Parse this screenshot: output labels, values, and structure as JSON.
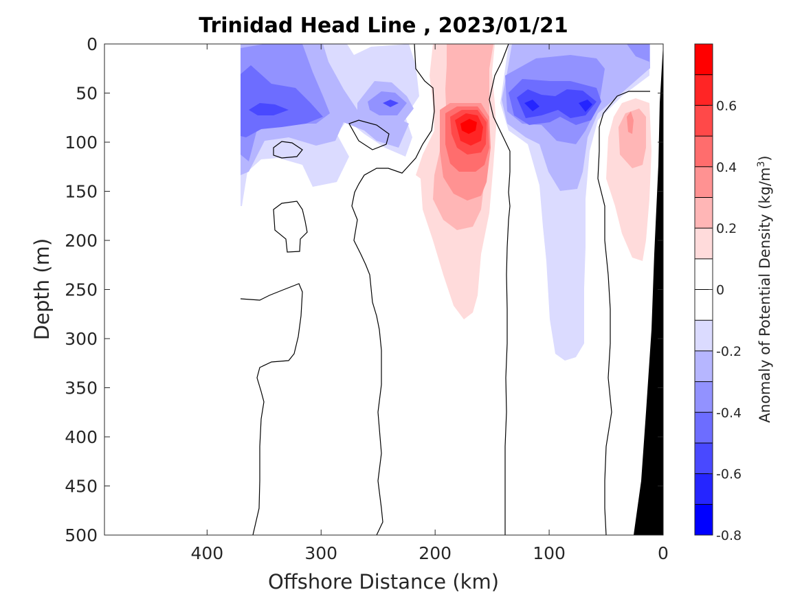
{
  "chart_data": {
    "type": "heatmap",
    "subtype": "filled contour section",
    "title": "Trinidad Head Line , 2023/01/21",
    "xlabel": "Offshore Distance (km)",
    "ylabel": "Depth (m)",
    "colorbar_label_main": "Anomaly of Potential Density (kg/m",
    "colorbar_label_sup": "3",
    "colorbar_label_end": ")",
    "xlim": [
      490,
      0
    ],
    "x_reversed": true,
    "ylim": [
      0,
      500
    ],
    "y_reversed": true,
    "x_ticks": [
      400,
      300,
      200,
      100,
      0
    ],
    "y_ticks": [
      0,
      50,
      100,
      150,
      200,
      250,
      300,
      350,
      400,
      450,
      500
    ],
    "clim": [
      -0.8,
      0.8
    ],
    "colorbar_ticks": [
      0.6,
      0.4,
      0.2,
      0,
      -0.2,
      -0.4,
      -0.6,
      -0.8
    ],
    "colorbar_tick_labels": [
      "0.6",
      "0.4",
      "0.2",
      "0",
      "-0.2",
      "-0.4",
      "-0.6",
      "-0.8"
    ],
    "levels": [
      {
        "lo": 0.7,
        "hi": 0.8,
        "color": "#ff0000"
      },
      {
        "lo": 0.6,
        "hi": 0.7,
        "color": "#ff2525"
      },
      {
        "lo": 0.5,
        "hi": 0.6,
        "color": "#ff4949"
      },
      {
        "lo": 0.4,
        "hi": 0.5,
        "color": "#ff6d6d"
      },
      {
        "lo": 0.3,
        "hi": 0.4,
        "color": "#ff9292"
      },
      {
        "lo": 0.2,
        "hi": 0.3,
        "color": "#ffb6b6"
      },
      {
        "lo": 0.1,
        "hi": 0.2,
        "color": "#ffdbdb"
      },
      {
        "lo": 0.0,
        "hi": 0.1,
        "color": "#ffffff"
      },
      {
        "lo": -0.1,
        "hi": 0.0,
        "color": "#ffffff"
      },
      {
        "lo": -0.2,
        "hi": -0.1,
        "color": "#dbdbff"
      },
      {
        "lo": -0.3,
        "hi": -0.2,
        "color": "#b6b6ff"
      },
      {
        "lo": -0.4,
        "hi": -0.3,
        "color": "#9292ff"
      },
      {
        "lo": -0.5,
        "hi": -0.4,
        "color": "#6d6dff"
      },
      {
        "lo": -0.6,
        "hi": -0.5,
        "color": "#4949ff"
      },
      {
        "lo": -0.7,
        "hi": -0.6,
        "color": "#2525ff"
      },
      {
        "lo": -0.8,
        "hi": -0.7,
        "color": "#0000ff"
      }
    ],
    "data_extent_km": [
      372,
      0
    ],
    "bathymetry_color": "#000000",
    "zero_contour_color": "#000000",
    "anomaly_features": [
      {
        "name": "offshore-negative-lobe",
        "x_km": [
          250,
          372
        ],
        "depth_m": [
          0,
          165
        ],
        "min_anomaly": -0.5
      },
      {
        "name": "subsurface-negative-core",
        "x_km": [
          230,
          255
        ],
        "depth_m": [
          45,
          110
        ],
        "min_anomaly": -0.5
      },
      {
        "name": "positive-eddy-core",
        "x_km": [
          140,
          220
        ],
        "depth_m": [
          0,
          280
        ],
        "max_anomaly": 0.7,
        "core_depth_m": 83,
        "core_x_km": 173
      },
      {
        "name": "nearshore-negative-core",
        "x_km": [
          50,
          140
        ],
        "depth_m": [
          0,
          325
        ],
        "min_anomaly": -0.6
      },
      {
        "name": "nearshore-positive-lobe",
        "x_km": [
          10,
          60
        ],
        "depth_m": [
          50,
          220
        ],
        "max_anomaly": 0.3
      }
    ]
  }
}
